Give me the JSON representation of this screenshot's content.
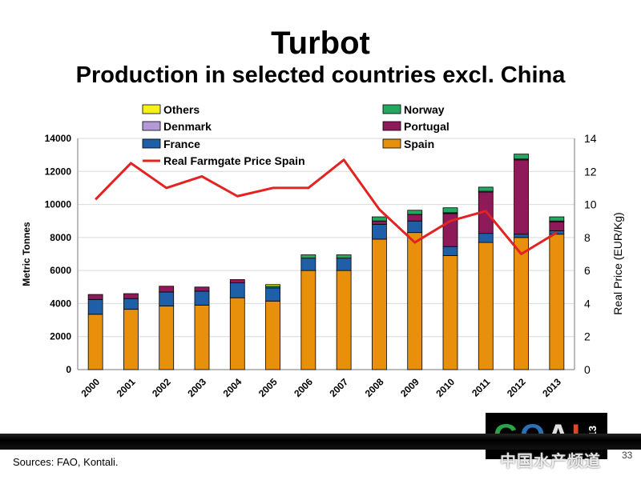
{
  "slide": {
    "title": "Turbot",
    "subtitle": "Production in selected countries excl. China",
    "sources": "Sources: FAO, Kontali.",
    "page_number": "33",
    "logo_text": "GOAL",
    "logo_year": "2013",
    "watermark": "中国水产频道"
  },
  "colors": {
    "Spain": "#e8900c",
    "France": "#1f5fa8",
    "Portugal": "#8e1a5a",
    "Denmark": "#b39ad6",
    "Norway": "#24a860",
    "Others": "#f6f01c",
    "price_line": "#e32222"
  },
  "chart_data": {
    "type": "bar",
    "stacked": true,
    "title": "",
    "xlabel": "",
    "ylabel": "Metric Tonnes",
    "y2label": "Real Price (EUR/Kg)",
    "ylim": [
      0,
      14000
    ],
    "y2lim": [
      0,
      14
    ],
    "yticks": [
      0,
      2000,
      4000,
      6000,
      8000,
      10000,
      12000,
      14000
    ],
    "y2ticks": [
      0,
      2,
      4,
      6,
      8,
      10,
      12,
      14
    ],
    "grid": true,
    "legend_position": "top",
    "categories": [
      "2000",
      "2001",
      "2002",
      "2003",
      "2004",
      "2005",
      "2006",
      "2007",
      "2008",
      "2009",
      "2010",
      "2011",
      "2012",
      "2013"
    ],
    "series": [
      {
        "name": "Spain",
        "values": [
          3350,
          3650,
          3850,
          3900,
          4350,
          4150,
          6000,
          6000,
          7900,
          8300,
          6900,
          7700,
          8000,
          8200
        ]
      },
      {
        "name": "France",
        "values": [
          900,
          650,
          850,
          850,
          900,
          800,
          750,
          750,
          900,
          700,
          550,
          550,
          200,
          200
        ]
      },
      {
        "name": "Portugal",
        "values": [
          300,
          300,
          350,
          250,
          200,
          0,
          0,
          0,
          200,
          400,
          2000,
          2500,
          4500,
          550
        ]
      },
      {
        "name": "Denmark",
        "values": [
          0,
          0,
          0,
          0,
          0,
          0,
          0,
          0,
          0,
          0,
          50,
          50,
          50,
          50
        ]
      },
      {
        "name": "Norway",
        "values": [
          0,
          0,
          0,
          0,
          0,
          100,
          200,
          200,
          250,
          250,
          300,
          250,
          300,
          250
        ]
      },
      {
        "name": "Others",
        "values": [
          0,
          0,
          0,
          0,
          0,
          100,
          0,
          0,
          0,
          0,
          0,
          0,
          0,
          0
        ]
      }
    ],
    "line_series": {
      "name": "Real Farmgate Price Spain",
      "axis": "right",
      "values": [
        10.3,
        12.5,
        11.0,
        11.7,
        10.5,
        11.0,
        11.0,
        12.7,
        9.7,
        7.7,
        9.0,
        9.6,
        7.0,
        8.3
      ]
    },
    "legend": [
      {
        "label": "Others",
        "series": "Others"
      },
      {
        "label": "Norway",
        "series": "Norway"
      },
      {
        "label": "Denmark",
        "series": "Denmark"
      },
      {
        "label": "Portugal",
        "series": "Portugal"
      },
      {
        "label": "France",
        "series": "France"
      },
      {
        "label": "Spain",
        "series": "Spain"
      },
      {
        "label": "Real Farmgate Price Spain",
        "series": "price_line"
      }
    ]
  }
}
